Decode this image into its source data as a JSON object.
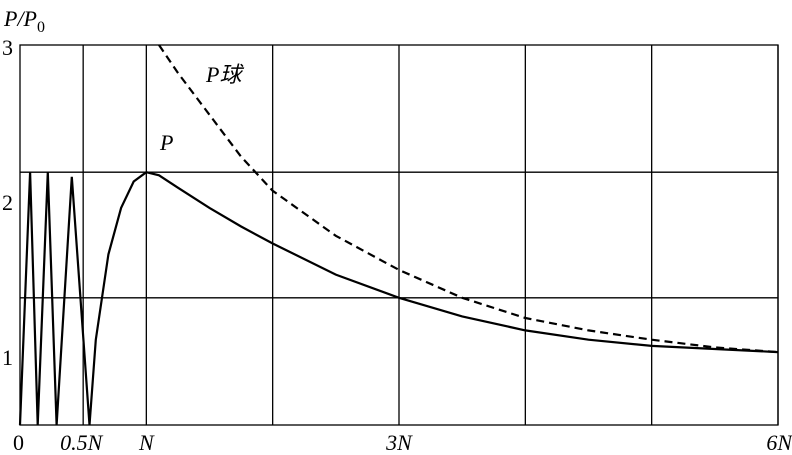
{
  "chart_data": {
    "type": "line",
    "ylabel": [
      "P/P",
      "0"
    ],
    "x_unit": "N",
    "xlim": [
      0,
      6
    ],
    "ylim": [
      0.55,
      3
    ],
    "xticks": [
      0,
      {
        "value": 0.5,
        "label": "0.5N"
      },
      {
        "value": 1,
        "label": "N"
      },
      {
        "value": 3,
        "label": "3N"
      },
      {
        "value": 6,
        "label": "6N"
      }
    ],
    "yticks": [
      1,
      2,
      3
    ],
    "xgrid": [
      0.5,
      1,
      2,
      3,
      4,
      5,
      6
    ],
    "ygrid": [
      2.18,
      1.37
    ],
    "series": [
      {
        "name": "P",
        "color": "#000000",
        "dash": false,
        "x": [
          0,
          0.08,
          0.14,
          0.22,
          0.29,
          0.41,
          0.55,
          0.6,
          0.7,
          0.8,
          0.9,
          1.0,
          1.1,
          1.25,
          1.5,
          1.75,
          2,
          2.5,
          3,
          3.5,
          4,
          4.5,
          5,
          5.5,
          6
        ],
        "values": [
          0.55,
          2.18,
          0.55,
          2.18,
          0.55,
          2.15,
          0.55,
          1.1,
          1.65,
          1.95,
          2.12,
          2.18,
          2.16,
          2.08,
          1.95,
          1.83,
          1.72,
          1.52,
          1.37,
          1.25,
          1.16,
          1.1,
          1.06,
          1.04,
          1.02
        ]
      },
      {
        "name": "P球",
        "color": "#000000",
        "dash": true,
        "x": [
          1.1,
          1.25,
          1.5,
          1.75,
          2,
          2.5,
          3,
          3.5,
          4,
          4.5,
          5,
          5.5,
          6
        ],
        "values": [
          3,
          2.82,
          2.55,
          2.28,
          2.06,
          1.77,
          1.55,
          1.37,
          1.24,
          1.16,
          1.1,
          1.05,
          1.02
        ]
      }
    ]
  }
}
